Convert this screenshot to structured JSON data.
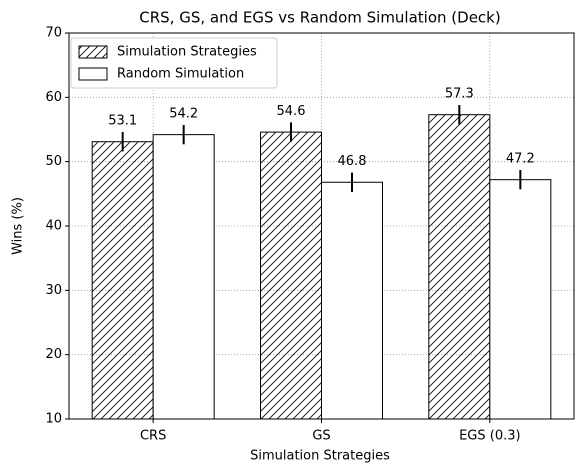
{
  "chart_data": {
    "type": "bar",
    "title": "CRS, GS, and EGS vs Random Simulation (Deck)",
    "xlabel": "Simulation Strategies",
    "ylabel": "Wins (%)",
    "categories": [
      "CRS",
      "GS",
      "EGS (0.3)"
    ],
    "series": [
      {
        "name": "Simulation Strategies",
        "color": "#ffffff",
        "hatch": true,
        "values": [
          53.1,
          54.6,
          57.3
        ],
        "errors": [
          1.5,
          1.5,
          1.5
        ]
      },
      {
        "name": "Random Simulation",
        "color": "#ffffff",
        "hatch": false,
        "values": [
          54.2,
          46.8,
          47.2
        ],
        "errors": [
          1.5,
          1.5,
          1.5
        ]
      }
    ],
    "ylim": [
      10,
      70
    ],
    "yticks": [
      10,
      20,
      30,
      40,
      50,
      60,
      70
    ],
    "grid": true,
    "legend": "upper left"
  }
}
